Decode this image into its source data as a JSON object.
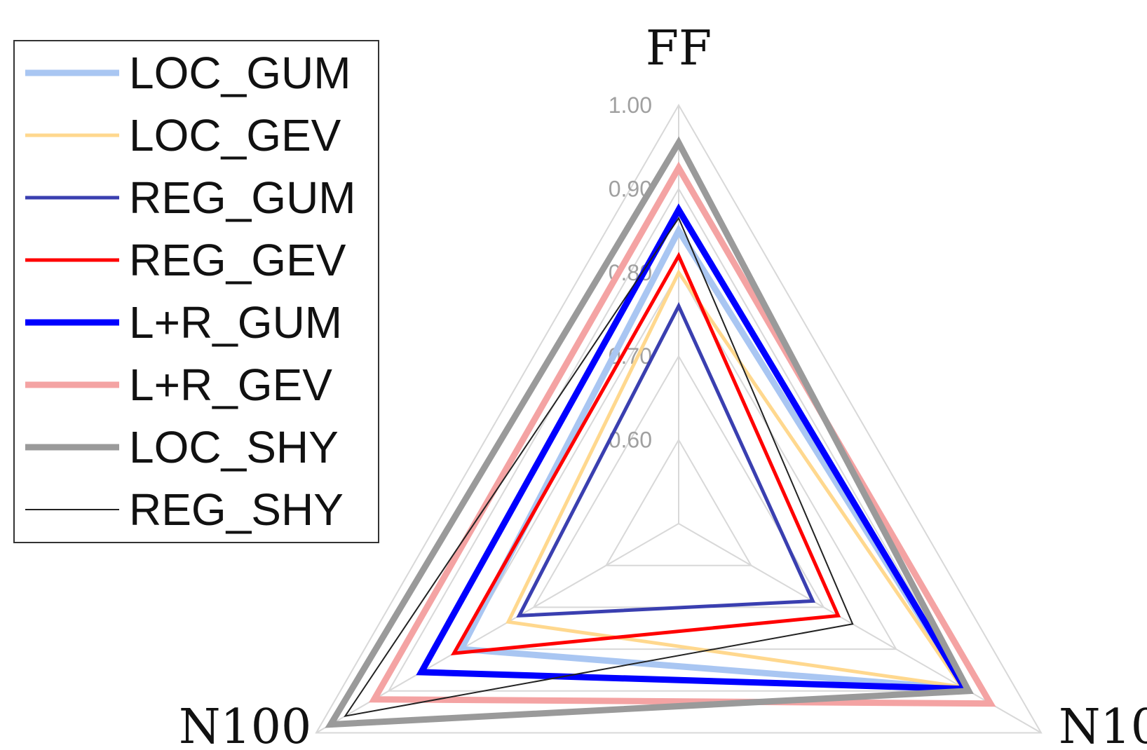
{
  "chart_data": {
    "type": "radar",
    "axes": [
      "FF",
      "N10",
      "N100"
    ],
    "rlim": [
      0.5,
      1.0
    ],
    "ticks": [
      {
        "value": 0.6,
        "label": "0.60"
      },
      {
        "value": 0.7,
        "label": "0.70"
      },
      {
        "value": 0.8,
        "label": "0.80"
      },
      {
        "value": 0.9,
        "label": "0.90"
      },
      {
        "value": 1.0,
        "label": "1.00"
      }
    ],
    "grid": true,
    "legend_position": "top-left",
    "series": [
      {
        "name": "LOC_GUM",
        "values": [
          0.85,
          0.895,
          0.8
        ],
        "color": "#a9c6f2"
      },
      {
        "name": "LOC_GEV",
        "values": [
          0.8,
          0.89,
          0.735
        ],
        "color": "#ffd88e"
      },
      {
        "name": "REG_GUM",
        "values": [
          0.76,
          0.685,
          0.72
        ],
        "color": "#3a3fb0"
      },
      {
        "name": "REG_GEV",
        "values": [
          0.82,
          0.72,
          0.81
        ],
        "color": "#ff0000"
      },
      {
        "name": "L+R_GUM",
        "values": [
          0.875,
          0.895,
          0.855
        ],
        "color": "#0000ff"
      },
      {
        "name": "L+R_GEV",
        "values": [
          0.925,
          0.93,
          0.92
        ],
        "color": "#f4a3a3"
      },
      {
        "name": "LOC_SHY",
        "values": [
          0.955,
          0.9,
          0.98
        ],
        "color": "#9a9a9a"
      },
      {
        "name": "REG_SHY",
        "values": [
          0.865,
          0.74,
          0.96
        ],
        "color": "#222222"
      }
    ]
  }
}
